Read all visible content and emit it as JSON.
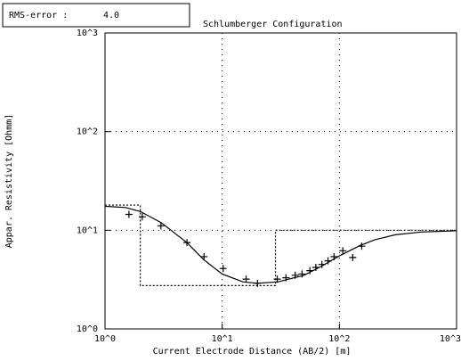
{
  "chart_data": {
    "type": "line",
    "title": "Schlumberger Configuration",
    "rms": {
      "label": "RMS-error :",
      "value": 4.0,
      "value_label": "4.0"
    },
    "x_label": "Current Electrode Distance (AB/2) [m]",
    "y_label": "Appar. Resistivity [Ohmm]",
    "log_x": true,
    "log_y": true,
    "grid": true,
    "xlim": [
      1,
      1000
    ],
    "ylim": [
      1,
      1000
    ],
    "xticks": [
      {
        "value": 1,
        "label": "10^0"
      },
      {
        "value": 10,
        "label": "10^1"
      },
      {
        "value": 100,
        "label": "10^2"
      },
      {
        "value": 1000,
        "label": "10^3"
      }
    ],
    "yticks": [
      {
        "value": 1,
        "label": "10^0"
      },
      {
        "value": 10,
        "label": "10^1"
      },
      {
        "value": 100,
        "label": "10^2"
      },
      {
        "value": 1000,
        "label": "10^3"
      }
    ],
    "series": [
      {
        "style": "markers",
        "color": "#000000",
        "x": [
          1.6,
          2.08,
          3.0,
          5.0,
          7.0,
          10.2,
          16,
          20,
          29.5,
          35,
          42,
          48,
          56,
          63,
          71,
          80,
          90,
          107,
          130,
          155
        ],
        "values": [
          14.5,
          13.7,
          11.1,
          7.5,
          5.4,
          4.1,
          3.2,
          2.9,
          3.2,
          3.3,
          3.5,
          3.6,
          3.9,
          4.2,
          4.5,
          4.9,
          5.4,
          6.2,
          5.3,
          6.9
        ]
      },
      {
        "style": "solid",
        "color": "#000000",
        "x": [
          1,
          1.5,
          2,
          3,
          5,
          7,
          10,
          15,
          20,
          30,
          50,
          70,
          100,
          150,
          200,
          300,
          500,
          1000
        ],
        "values": [
          17.5,
          17,
          15.5,
          12,
          7.5,
          5,
          3.6,
          3.0,
          2.9,
          3.0,
          3.5,
          4.3,
          5.5,
          7.0,
          8.0,
          9.0,
          9.6,
          9.9
        ]
      },
      {
        "style": "dotted",
        "color": "#000000",
        "x": [
          1,
          2.0,
          2.0,
          28.5,
          28.5,
          1000
        ],
        "values": [
          18,
          18,
          2.75,
          2.75,
          10,
          10
        ]
      }
    ]
  }
}
